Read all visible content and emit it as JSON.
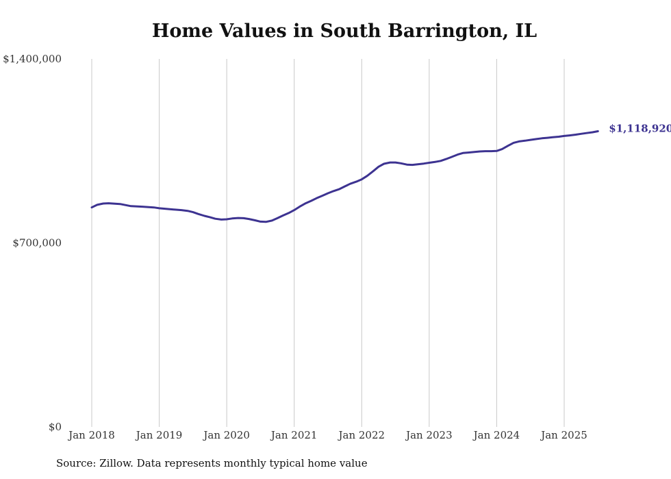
{
  "chart_data": {
    "type": "line",
    "title": "Home Values in South Barrington, IL",
    "xlabel": "",
    "ylabel": "",
    "ylim": [
      0,
      1400000
    ],
    "y_ticks": [
      {
        "value": 0,
        "label": "$0"
      },
      {
        "value": 700000,
        "label": "$700,000"
      },
      {
        "value": 1400000,
        "label": "$1,400,000"
      }
    ],
    "x_ticks": [
      {
        "value": 2018.0,
        "label": "Jan 2018"
      },
      {
        "value": 2019.0,
        "label": "Jan 2019"
      },
      {
        "value": 2020.0,
        "label": "Jan 2020"
      },
      {
        "value": 2021.0,
        "label": "Jan 2021"
      },
      {
        "value": 2022.0,
        "label": "Jan 2022"
      },
      {
        "value": 2023.0,
        "label": "Jan 2023"
      },
      {
        "value": 2024.0,
        "label": "Jan 2024"
      },
      {
        "value": 2025.0,
        "label": "Jan 2025"
      }
    ],
    "grid": "vertical",
    "line_color": "#3d3391",
    "end_label": "$1,118,920",
    "series": [
      {
        "points": [
          [
            2018.0,
            835000
          ],
          [
            2018.08,
            845000
          ],
          [
            2018.17,
            850000
          ],
          [
            2018.25,
            851000
          ],
          [
            2018.42,
            848000
          ],
          [
            2018.58,
            840000
          ],
          [
            2018.75,
            838000
          ],
          [
            2018.92,
            835000
          ],
          [
            2019.0,
            832000
          ],
          [
            2019.17,
            828000
          ],
          [
            2019.33,
            825000
          ],
          [
            2019.42,
            822000
          ],
          [
            2019.5,
            817000
          ],
          [
            2019.58,
            810000
          ],
          [
            2019.67,
            803000
          ],
          [
            2019.75,
            798000
          ],
          [
            2019.83,
            792000
          ],
          [
            2019.92,
            789000
          ],
          [
            2020.0,
            790000
          ],
          [
            2020.08,
            793000
          ],
          [
            2020.17,
            795000
          ],
          [
            2020.25,
            794000
          ],
          [
            2020.33,
            791000
          ],
          [
            2020.42,
            786000
          ],
          [
            2020.5,
            781000
          ],
          [
            2020.58,
            780000
          ],
          [
            2020.67,
            785000
          ],
          [
            2020.75,
            794000
          ],
          [
            2020.83,
            804000
          ],
          [
            2020.92,
            814000
          ],
          [
            2021.0,
            825000
          ],
          [
            2021.08,
            838000
          ],
          [
            2021.17,
            851000
          ],
          [
            2021.25,
            860000
          ],
          [
            2021.33,
            870000
          ],
          [
            2021.42,
            880000
          ],
          [
            2021.5,
            889000
          ],
          [
            2021.58,
            897000
          ],
          [
            2021.67,
            905000
          ],
          [
            2021.75,
            915000
          ],
          [
            2021.83,
            925000
          ],
          [
            2021.92,
            933000
          ],
          [
            2022.0,
            942000
          ],
          [
            2022.08,
            955000
          ],
          [
            2022.17,
            973000
          ],
          [
            2022.25,
            990000
          ],
          [
            2022.33,
            1001000
          ],
          [
            2022.42,
            1006000
          ],
          [
            2022.5,
            1006000
          ],
          [
            2022.58,
            1003000
          ],
          [
            2022.67,
            998000
          ],
          [
            2022.75,
            997000
          ],
          [
            2022.83,
            999000
          ],
          [
            2022.92,
            1002000
          ],
          [
            2023.0,
            1005000
          ],
          [
            2023.08,
            1008000
          ],
          [
            2023.17,
            1012000
          ],
          [
            2023.25,
            1019000
          ],
          [
            2023.33,
            1027000
          ],
          [
            2023.42,
            1036000
          ],
          [
            2023.5,
            1042000
          ],
          [
            2023.58,
            1044000
          ],
          [
            2023.67,
            1046000
          ],
          [
            2023.75,
            1048000
          ],
          [
            2023.83,
            1049000
          ],
          [
            2023.92,
            1049000
          ],
          [
            2024.0,
            1050000
          ],
          [
            2024.08,
            1057000
          ],
          [
            2024.17,
            1070000
          ],
          [
            2024.25,
            1081000
          ],
          [
            2024.33,
            1086000
          ],
          [
            2024.42,
            1089000
          ],
          [
            2024.5,
            1092000
          ],
          [
            2024.58,
            1095000
          ],
          [
            2024.67,
            1098000
          ],
          [
            2024.75,
            1100000
          ],
          [
            2024.83,
            1102000
          ],
          [
            2024.92,
            1104000
          ],
          [
            2025.0,
            1107000
          ],
          [
            2025.08,
            1109000
          ],
          [
            2025.17,
            1112000
          ],
          [
            2025.25,
            1115000
          ],
          [
            2025.33,
            1118000
          ],
          [
            2025.42,
            1121000
          ],
          [
            2025.5,
            1125000
          ]
        ]
      }
    ]
  },
  "source_note": "Source: Zillow. Data represents monthly typical home value"
}
